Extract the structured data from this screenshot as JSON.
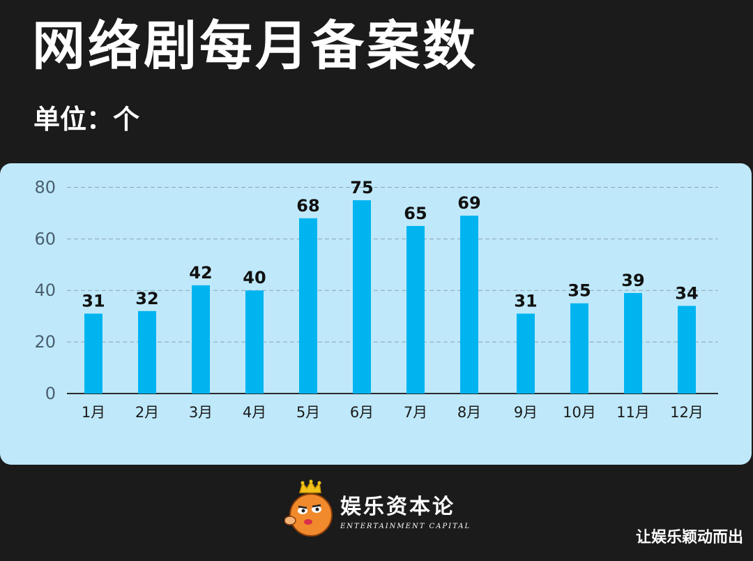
{
  "header": {
    "title": "网络剧每月备案数",
    "unit": "单位：个"
  },
  "chart_data": {
    "type": "bar",
    "categories": [
      "1月",
      "2月",
      "3月",
      "4月",
      "5月",
      "6月",
      "7月",
      "8月",
      "9月",
      "10月",
      "11月",
      "12月"
    ],
    "values": [
      31,
      32,
      42,
      40,
      68,
      75,
      65,
      69,
      31,
      35,
      39,
      34
    ],
    "yticks": [
      0,
      20,
      40,
      60,
      80
    ],
    "ylim": [
      0,
      85
    ],
    "grid": true,
    "bar_color": "#00b4f0",
    "panel_color": "#bfe9fb"
  },
  "brand": {
    "name": "娱乐资本论",
    "english": "ENTERTAINMENT CAPITAL",
    "logo_icon": "crowned-mascot-logo"
  },
  "source": "让娱乐颖动而出"
}
